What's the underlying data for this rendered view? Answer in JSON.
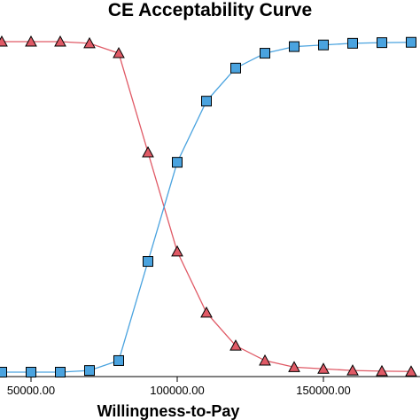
{
  "chart_data": {
    "type": "line",
    "title": "CE Acceptability Curve",
    "xlabel": "Willingness-to-Pay",
    "ylabel": "",
    "xlim": [
      40000,
      184000
    ],
    "ylim": [
      0,
      1
    ],
    "x_ticks": [
      50000,
      100000,
      150000
    ],
    "x_tick_labels": [
      "50000.00",
      "100000.00",
      "150000.00"
    ],
    "grid": false,
    "legend": "none",
    "series": [
      {
        "color": "#e05a66",
        "marker": "triangle",
        "x": [
          40000,
          50000,
          60000,
          70000,
          80000,
          90000,
          100000,
          110000,
          120000,
          130000,
          140000,
          150000,
          160000,
          170000,
          180000
        ],
        "values": [
          1.0,
          1.0,
          1.0,
          0.995,
          0.965,
          0.665,
          0.365,
          0.18,
          0.08,
          0.035,
          0.015,
          0.01,
          0.005,
          0.003,
          0.002
        ]
      },
      {
        "color": "#4aa3df",
        "marker": "square",
        "x": [
          40000,
          50000,
          60000,
          70000,
          80000,
          90000,
          100000,
          110000,
          120000,
          130000,
          140000,
          150000,
          160000,
          170000,
          180000
        ],
        "values": [
          0.0,
          0.0,
          0.0,
          0.005,
          0.035,
          0.335,
          0.635,
          0.82,
          0.92,
          0.965,
          0.985,
          0.99,
          0.995,
          0.997,
          0.998
        ]
      }
    ]
  }
}
